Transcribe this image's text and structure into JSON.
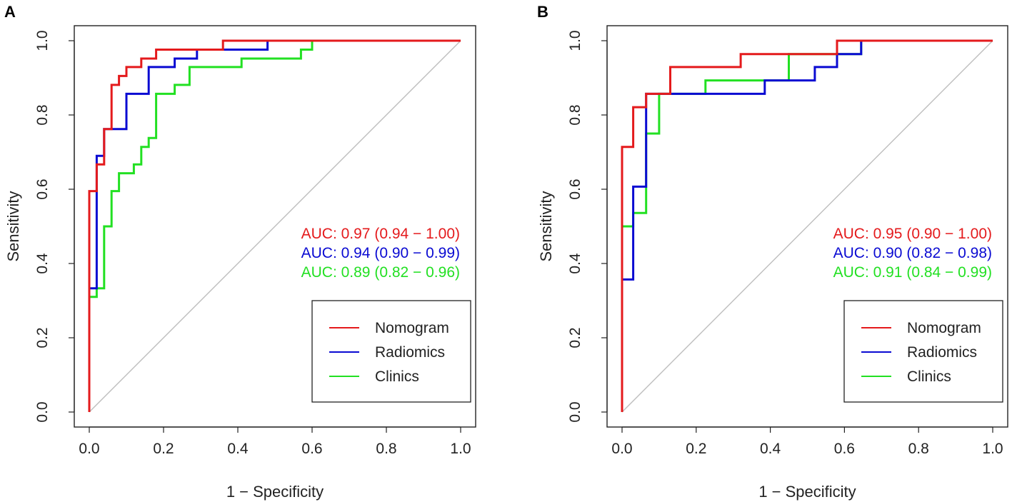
{
  "chart_data": [
    {
      "type": "line",
      "panel_label": "A",
      "title": "",
      "xlabel": "1 − Specificity",
      "ylabel": "Sensitivity",
      "xlim": [
        0,
        1
      ],
      "ylim": [
        0,
        1
      ],
      "xticks": [
        "0.0",
        "0.2",
        "0.4",
        "0.6",
        "0.8",
        "1.0"
      ],
      "yticks": [
        "0.0",
        "0.2",
        "0.4",
        "0.6",
        "0.8",
        "1.0"
      ],
      "grid": false,
      "legend_position": "bottom-right",
      "reference_line": "diagonal",
      "reference_color": "#bebebe",
      "series": [
        {
          "name": "Nomogram",
          "color": "#e41a1c",
          "auc_text": "AUC: 0.97 (0.94 − 1.00)",
          "x": [
            0,
            0,
            0.02,
            0.02,
            0.04,
            0.04,
            0.06,
            0.06,
            0.08,
            0.08,
            0.1,
            0.1,
            0.14,
            0.14,
            0.18,
            0.18,
            0.2,
            0.2,
            0.36,
            0.36,
            1
          ],
          "y": [
            0,
            0.595,
            0.595,
            0.667,
            0.667,
            0.762,
            0.762,
            0.881,
            0.881,
            0.905,
            0.905,
            0.929,
            0.929,
            0.952,
            0.952,
            0.976,
            0.976,
            0.976,
            0.976,
            1,
            1
          ]
        },
        {
          "name": "Radiomics",
          "color": "#0a0ad2",
          "auc_text": "AUC: 0.94 (0.90 − 0.99)",
          "x": [
            0,
            0,
            0.02,
            0.02,
            0.04,
            0.04,
            0.1,
            0.1,
            0.16,
            0.16,
            0.23,
            0.23,
            0.29,
            0.29,
            0.48,
            0.48,
            1
          ],
          "y": [
            0,
            0.333,
            0.333,
            0.69,
            0.69,
            0.762,
            0.762,
            0.857,
            0.857,
            0.929,
            0.929,
            0.952,
            0.952,
            0.976,
            0.976,
            1,
            1
          ]
        },
        {
          "name": "Clinics",
          "color": "#22e022",
          "auc_text": "AUC: 0.89 (0.82 − 0.96)",
          "x": [
            0,
            0,
            0.02,
            0.02,
            0.04,
            0.04,
            0.06,
            0.06,
            0.08,
            0.08,
            0.12,
            0.12,
            0.14,
            0.14,
            0.16,
            0.16,
            0.18,
            0.18,
            0.23,
            0.23,
            0.27,
            0.27,
            0.41,
            0.41,
            0.57,
            0.57,
            0.6,
            0.6,
            1
          ],
          "y": [
            0,
            0.31,
            0.31,
            0.333,
            0.333,
            0.5,
            0.5,
            0.595,
            0.595,
            0.643,
            0.643,
            0.667,
            0.667,
            0.714,
            0.714,
            0.738,
            0.738,
            0.857,
            0.857,
            0.881,
            0.881,
            0.929,
            0.929,
            0.952,
            0.952,
            0.976,
            0.976,
            1,
            1
          ]
        }
      ]
    },
    {
      "type": "line",
      "panel_label": "B",
      "title": "",
      "xlabel": "1 − Specificity",
      "ylabel": "Sensitivity",
      "xlim": [
        0,
        1
      ],
      "ylim": [
        0,
        1
      ],
      "xticks": [
        "0.0",
        "0.2",
        "0.4",
        "0.6",
        "0.8",
        "1.0"
      ],
      "yticks": [
        "0.0",
        "0.2",
        "0.4",
        "0.6",
        "0.8",
        "1.0"
      ],
      "grid": false,
      "legend_position": "bottom-right",
      "reference_line": "diagonal",
      "reference_color": "#bebebe",
      "series": [
        {
          "name": "Nomogram",
          "color": "#e41a1c",
          "auc_text": "AUC: 0.95 (0.90 − 1.00)",
          "x": [
            0,
            0,
            0,
            0,
            0.03,
            0.03,
            0.065,
            0.065,
            0.13,
            0.13,
            0.32,
            0.32,
            0.58,
            0.58,
            1
          ],
          "y": [
            0,
            0.5,
            0.5,
            0.714,
            0.714,
            0.821,
            0.821,
            0.857,
            0.857,
            0.929,
            0.929,
            0.964,
            0.964,
            1,
            1
          ]
        },
        {
          "name": "Radiomics",
          "color": "#0a0ad2",
          "auc_text": "AUC: 0.90 (0.82 − 0.98)",
          "x": [
            0,
            0,
            0.03,
            0.03,
            0.065,
            0.065,
            0.385,
            0.385,
            0.45,
            0.45,
            0.52,
            0.52,
            0.58,
            0.58,
            0.645,
            0.645,
            1
          ],
          "y": [
            0,
            0.357,
            0.357,
            0.607,
            0.607,
            0.857,
            0.857,
            0.893,
            0.893,
            0.893,
            0.893,
            0.929,
            0.929,
            0.964,
            0.964,
            1,
            1
          ]
        },
        {
          "name": "Clinics",
          "color": "#22e022",
          "auc_text": "AUC: 0.91 (0.84 − 0.99)",
          "x": [
            0,
            0,
            0.03,
            0.03,
            0.065,
            0.065,
            0.1,
            0.1,
            0.225,
            0.225,
            0.45,
            0.45,
            0.645,
            0.645,
            1
          ],
          "y": [
            0,
            0.5,
            0.5,
            0.536,
            0.536,
            0.75,
            0.75,
            0.857,
            0.857,
            0.893,
            0.893,
            0.964,
            0.964,
            1,
            1
          ]
        }
      ]
    }
  ]
}
